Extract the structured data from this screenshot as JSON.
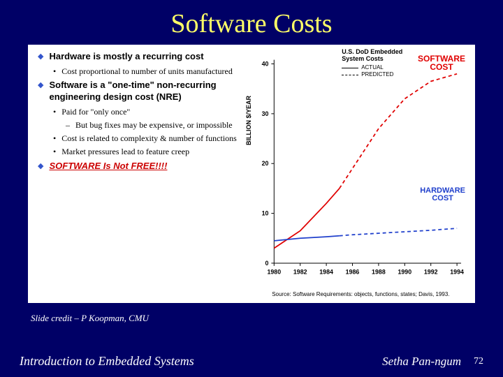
{
  "title": "Software Costs",
  "bullets": {
    "b1": "Hardware is mostly a recurring cost",
    "b1s1": "Cost proportional to number of units manufactured",
    "b2": "Software is a \"one-time\" non-recurring engineering design cost  (NRE)",
    "b2s1": "Paid for \"only once\"",
    "b2s1a": "But bug fixes may be expensive, or impossible",
    "b2s2": "Cost is related to complexity & number of functions",
    "b2s3": "Market pressures lead to feature creep",
    "b2s4": "SOFTWARE Is Not FREE!!!!"
  },
  "chart": {
    "type": "line",
    "title_line1": "U.S. DoD Embedded",
    "title_line2": "System Costs",
    "legend_actual": "ACTUAL",
    "legend_predicted": "PREDICTED",
    "ylabel": "BILLION $/YEAR",
    "sw_label_l1": "SOFTWARE",
    "sw_label_l2": "COST",
    "hw_label_l1": "HARDWARE",
    "hw_label_l2": "COST",
    "ylim": [
      0,
      40
    ],
    "yticks": [
      0,
      10,
      20,
      30,
      40
    ],
    "xlim": [
      1980,
      1994
    ],
    "xticks": [
      1980,
      1982,
      1984,
      1986,
      1988,
      1990,
      1992,
      1994
    ],
    "software_actual": {
      "x": [
        1980,
        1982,
        1984,
        1985
      ],
      "y": [
        3,
        6.5,
        12,
        15
      ]
    },
    "software_pred": {
      "x": [
        1985,
        1986,
        1988,
        1990,
        1992,
        1994
      ],
      "y": [
        15,
        19,
        27,
        33,
        36.5,
        38
      ]
    },
    "hardware_actual": {
      "x": [
        1980,
        1982,
        1984,
        1985
      ],
      "y": [
        4.5,
        5,
        5.3,
        5.5
      ]
    },
    "hardware_pred": {
      "x": [
        1985,
        1986,
        1988,
        1990,
        1992,
        1994
      ],
      "y": [
        5.5,
        5.7,
        6,
        6.3,
        6.6,
        7
      ]
    },
    "colors": {
      "software": "#e00000",
      "hardware": "#2040cc",
      "axis": "#000000",
      "background": "#ffffff"
    },
    "line_width_actual": 1.8,
    "line_width_pred": 1.8,
    "source_text": "Source: Software Requirements: objects, functions, states; Davis, 1993."
  },
  "slide_credit": "Slide credit – P Koopman, CMU",
  "footer_left": "Introduction to Embedded Systems",
  "footer_right": "Setha Pan-ngum",
  "page_number": "72"
}
